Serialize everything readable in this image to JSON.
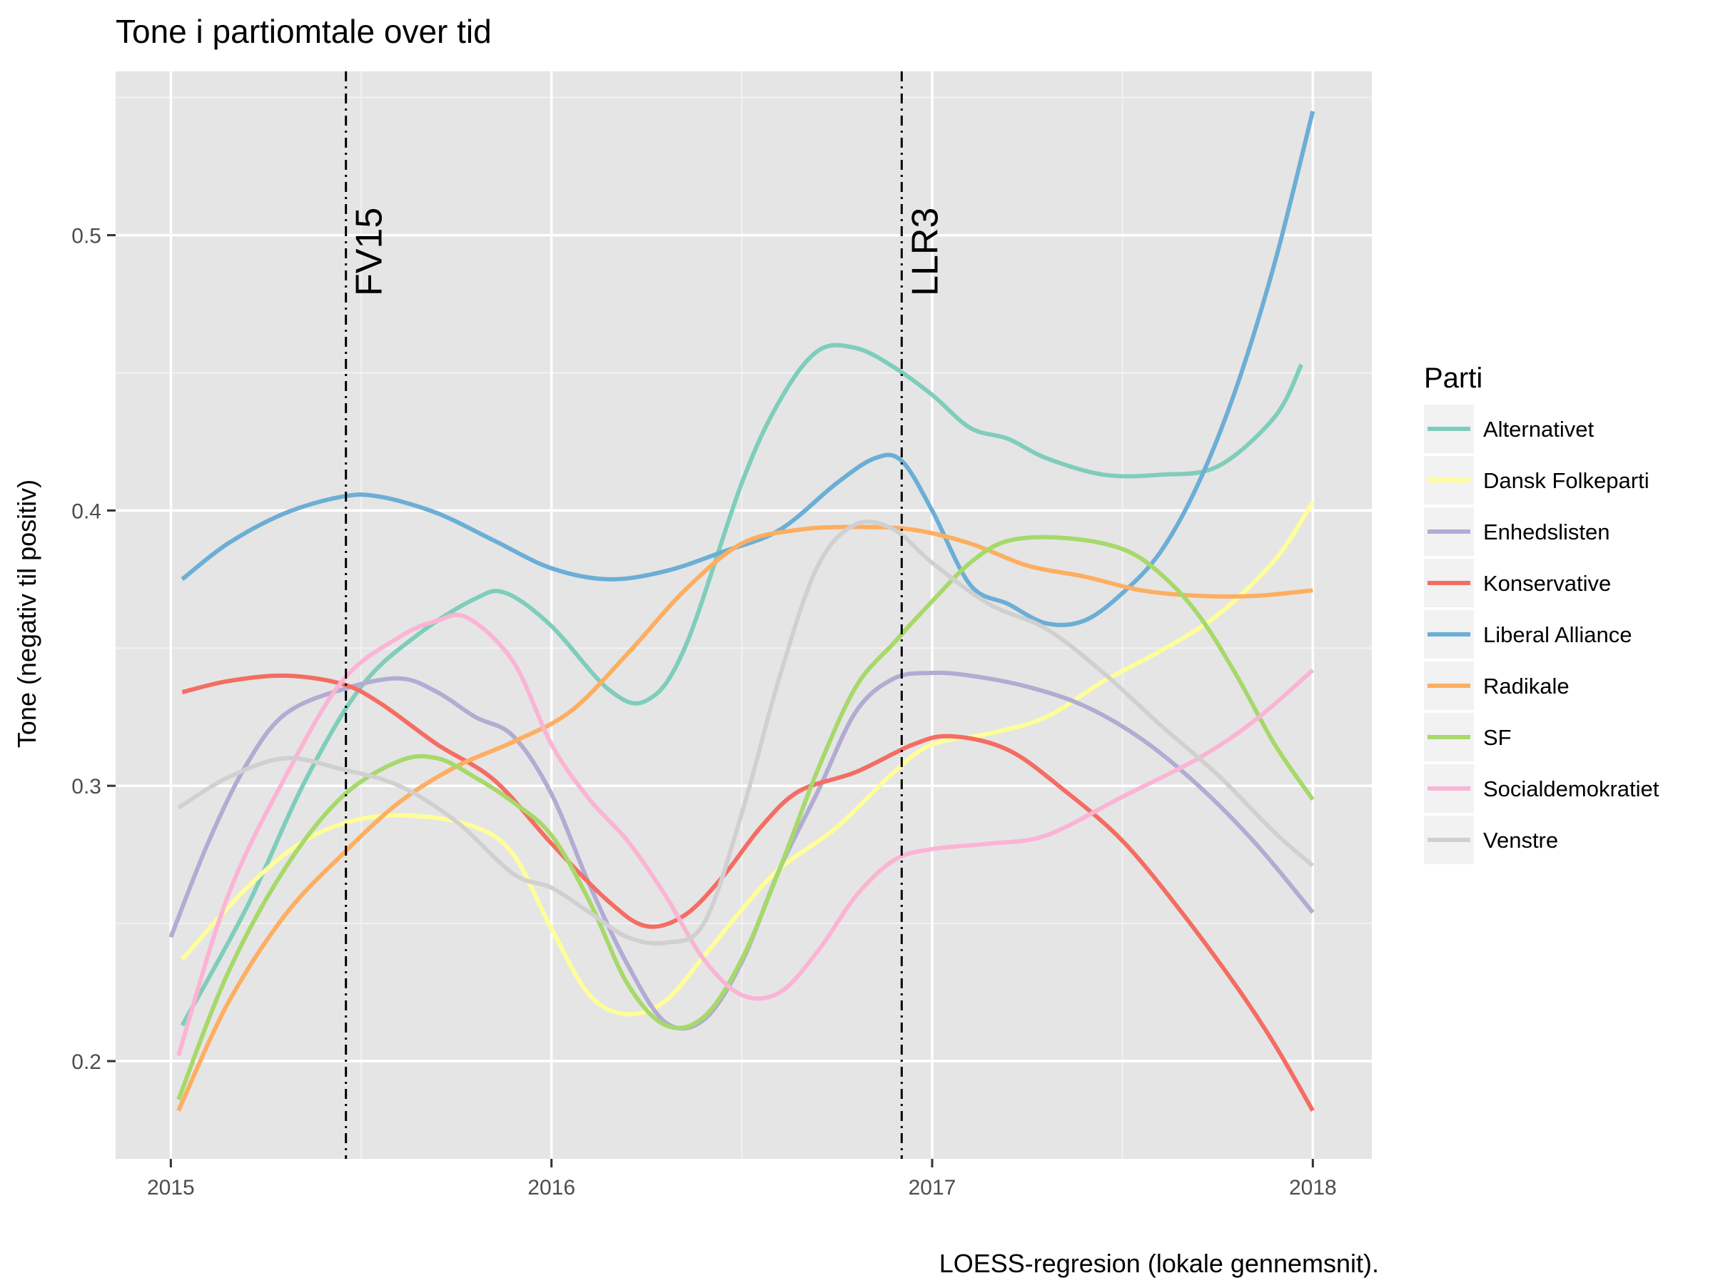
{
  "chart_data": {
    "type": "line",
    "title": "Tone i partiomtale over tid",
    "xlabel": "",
    "ylabel": "Tone (negativ til positiv)",
    "caption": "LOESS-regresion (lokale gennemsnit).",
    "xlim": [
      2014.855,
      2018.155
    ],
    "ylim": [
      0.1645,
      0.5595
    ],
    "x_ticks": [
      2015,
      2016,
      2017,
      2018
    ],
    "x_tick_labels": [
      "2015",
      "2016",
      "2017",
      "2018"
    ],
    "y_ticks": [
      0.2,
      0.3,
      0.4,
      0.5
    ],
    "y_tick_labels": [
      "0.2",
      "0.3",
      "0.4",
      "0.5"
    ],
    "grid": true,
    "background": "#e5e5e5",
    "legend": {
      "title": "Parti",
      "position": "right"
    },
    "vlines": [
      {
        "x": 2015.46,
        "label": "FV15"
      },
      {
        "x": 2016.92,
        "label": "LLR3"
      }
    ],
    "series": [
      {
        "name": "Alternativet",
        "color": "#7fcdbb",
        "x": [
          2015.03,
          2015.2,
          2015.35,
          2015.5,
          2015.65,
          2015.8,
          2015.88,
          2016.0,
          2016.15,
          2016.25,
          2016.35,
          2016.5,
          2016.6,
          2016.7,
          2016.8,
          2016.9,
          2017.0,
          2017.1,
          2017.2,
          2017.3,
          2017.45,
          2017.6,
          2017.75,
          2017.9,
          2017.97
        ],
        "values": [
          0.213,
          0.256,
          0.301,
          0.336,
          0.355,
          0.368,
          0.37,
          0.358,
          0.335,
          0.331,
          0.35,
          0.41,
          0.44,
          0.458,
          0.459,
          0.452,
          0.442,
          0.43,
          0.426,
          0.419,
          0.413,
          0.413,
          0.416,
          0.434,
          0.453
        ]
      },
      {
        "name": "Dansk Folkeparti",
        "color": "#ffff99",
        "x": [
          2015.03,
          2015.2,
          2015.35,
          2015.5,
          2015.65,
          2015.8,
          2015.9,
          2016.0,
          2016.1,
          2016.2,
          2016.3,
          2016.4,
          2016.5,
          2016.6,
          2016.75,
          2016.9,
          2017.0,
          2017.15,
          2017.3,
          2017.45,
          2017.6,
          2017.75,
          2017.9,
          2018.0
        ],
        "values": [
          0.237,
          0.263,
          0.28,
          0.288,
          0.289,
          0.285,
          0.275,
          0.248,
          0.224,
          0.217,
          0.222,
          0.238,
          0.255,
          0.27,
          0.285,
          0.305,
          0.315,
          0.319,
          0.325,
          0.338,
          0.349,
          0.362,
          0.382,
          0.403
        ]
      },
      {
        "name": "Enhedslisten",
        "color": "#b2abd2",
        "x": [
          2015.0,
          2015.1,
          2015.2,
          2015.3,
          2015.45,
          2015.6,
          2015.7,
          2015.8,
          2015.9,
          2016.0,
          2016.1,
          2016.2,
          2016.3,
          2016.4,
          2016.5,
          2016.6,
          2016.7,
          2016.8,
          2016.9,
          2017.0,
          2017.1,
          2017.25,
          2017.4,
          2017.55,
          2017.7,
          2017.85,
          2018.0
        ],
        "values": [
          0.245,
          0.28,
          0.308,
          0.326,
          0.335,
          0.339,
          0.334,
          0.325,
          0.318,
          0.297,
          0.264,
          0.235,
          0.214,
          0.215,
          0.236,
          0.27,
          0.298,
          0.327,
          0.339,
          0.341,
          0.34,
          0.336,
          0.329,
          0.317,
          0.3,
          0.279,
          0.254
        ]
      },
      {
        "name": "Konservative",
        "color": "#f46d63",
        "x": [
          2015.03,
          2015.15,
          2015.3,
          2015.45,
          2015.55,
          2015.7,
          2015.85,
          2016.0,
          2016.15,
          2016.25,
          2016.35,
          2016.45,
          2016.55,
          2016.65,
          2016.8,
          2016.95,
          2017.05,
          2017.2,
          2017.35,
          2017.5,
          2017.65,
          2017.8,
          2017.9,
          2018.0
        ],
        "values": [
          0.334,
          0.338,
          0.34,
          0.337,
          0.33,
          0.315,
          0.302,
          0.279,
          0.258,
          0.249,
          0.253,
          0.267,
          0.285,
          0.298,
          0.305,
          0.315,
          0.318,
          0.313,
          0.298,
          0.28,
          0.255,
          0.227,
          0.206,
          0.182
        ]
      },
      {
        "name": "Liberal Alliance",
        "color": "#6baed6",
        "x": [
          2015.03,
          2015.15,
          2015.3,
          2015.45,
          2015.55,
          2015.7,
          2015.85,
          2016.0,
          2016.15,
          2016.3,
          2016.45,
          2016.6,
          2016.75,
          2016.85,
          2016.92,
          2017.0,
          2017.1,
          2017.2,
          2017.3,
          2017.4,
          2017.5,
          2017.6,
          2017.7,
          2017.8,
          2017.9,
          2018.0
        ],
        "values": [
          0.375,
          0.388,
          0.399,
          0.405,
          0.405,
          0.399,
          0.389,
          0.379,
          0.375,
          0.378,
          0.385,
          0.393,
          0.41,
          0.419,
          0.418,
          0.4,
          0.373,
          0.366,
          0.359,
          0.36,
          0.37,
          0.385,
          0.41,
          0.445,
          0.49,
          0.545
        ]
      },
      {
        "name": "Radikale",
        "color": "#fdae61",
        "x": [
          2015.02,
          2015.15,
          2015.3,
          2015.45,
          2015.6,
          2015.75,
          2015.9,
          2016.05,
          2016.2,
          2016.35,
          2016.5,
          2016.65,
          2016.8,
          2016.95,
          2017.1,
          2017.25,
          2017.4,
          2017.55,
          2017.7,
          2017.85,
          2018.0
        ],
        "values": [
          0.182,
          0.221,
          0.253,
          0.275,
          0.294,
          0.307,
          0.316,
          0.327,
          0.348,
          0.371,
          0.388,
          0.393,
          0.394,
          0.393,
          0.388,
          0.38,
          0.376,
          0.371,
          0.369,
          0.369,
          0.371
        ]
      },
      {
        "name": "SF",
        "color": "#a6d96a",
        "x": [
          2015.02,
          2015.15,
          2015.3,
          2015.45,
          2015.6,
          2015.7,
          2015.8,
          2015.9,
          2016.0,
          2016.1,
          2016.2,
          2016.3,
          2016.4,
          2016.5,
          2016.6,
          2016.7,
          2016.8,
          2016.9,
          2017.0,
          2017.1,
          2017.2,
          2017.35,
          2017.5,
          2017.6,
          2017.7,
          2017.8,
          2017.9,
          2018.0
        ],
        "values": [
          0.186,
          0.232,
          0.27,
          0.296,
          0.309,
          0.31,
          0.303,
          0.294,
          0.282,
          0.258,
          0.228,
          0.213,
          0.216,
          0.237,
          0.27,
          0.306,
          0.336,
          0.352,
          0.367,
          0.381,
          0.389,
          0.39,
          0.386,
          0.377,
          0.362,
          0.34,
          0.315,
          0.295
        ]
      },
      {
        "name": "Socialdemokratiet",
        "color": "#fbb4d4",
        "x": [
          2015.02,
          2015.15,
          2015.3,
          2015.45,
          2015.6,
          2015.7,
          2015.78,
          2015.9,
          2016.0,
          2016.1,
          2016.2,
          2016.3,
          2016.4,
          2016.5,
          2016.6,
          2016.7,
          2016.8,
          2016.9,
          2017.0,
          2017.15,
          2017.3,
          2017.5,
          2017.7,
          2017.85,
          2018.0
        ],
        "values": [
          0.202,
          0.26,
          0.303,
          0.338,
          0.354,
          0.36,
          0.361,
          0.345,
          0.315,
          0.295,
          0.28,
          0.26,
          0.237,
          0.224,
          0.225,
          0.24,
          0.26,
          0.273,
          0.277,
          0.279,
          0.282,
          0.296,
          0.31,
          0.324,
          0.342
        ]
      },
      {
        "name": "Venstre",
        "color": "#d0d0d0",
        "x": [
          2015.02,
          2015.15,
          2015.3,
          2015.45,
          2015.6,
          2015.75,
          2015.9,
          2016.0,
          2016.1,
          2016.2,
          2016.3,
          2016.4,
          2016.5,
          2016.6,
          2016.7,
          2016.8,
          2016.9,
          2017.0,
          2017.15,
          2017.3,
          2017.45,
          2017.6,
          2017.75,
          2017.9,
          2018.0
        ],
        "values": [
          0.292,
          0.303,
          0.31,
          0.306,
          0.3,
          0.287,
          0.268,
          0.263,
          0.254,
          0.245,
          0.243,
          0.25,
          0.29,
          0.34,
          0.38,
          0.395,
          0.393,
          0.381,
          0.366,
          0.357,
          0.341,
          0.322,
          0.304,
          0.283,
          0.271
        ]
      }
    ]
  }
}
